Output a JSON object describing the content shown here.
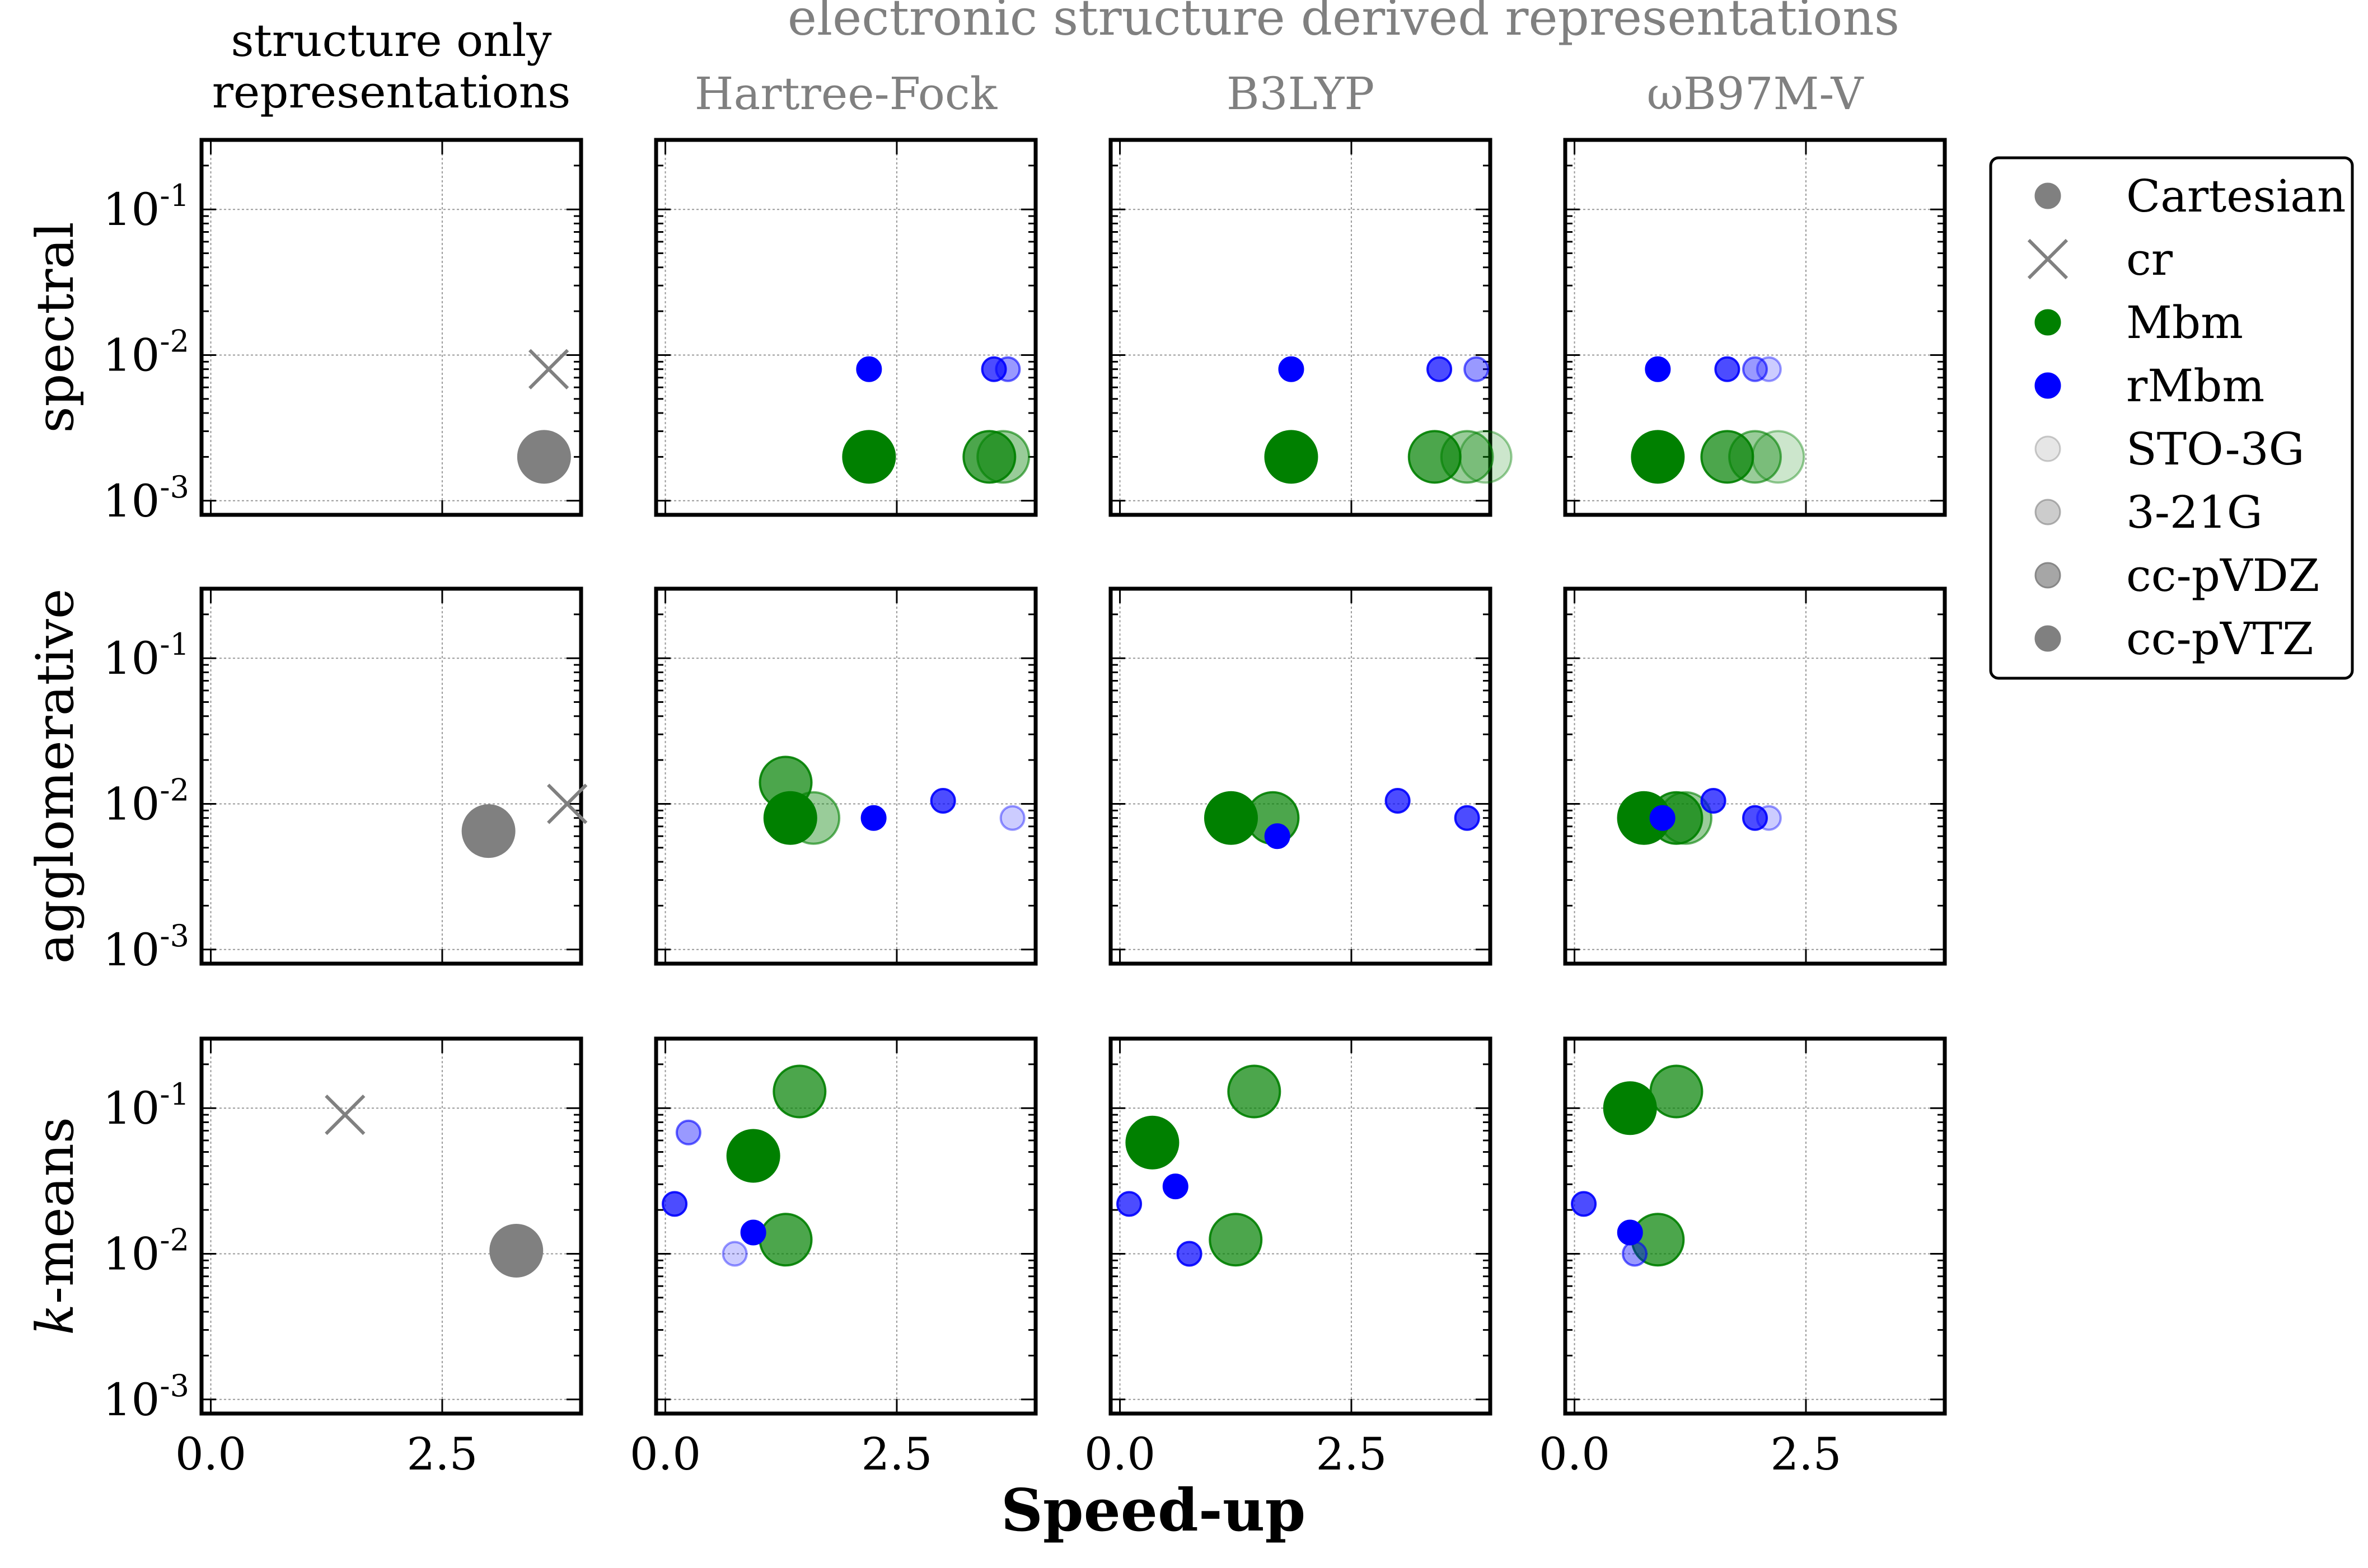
{
  "figure": {
    "super_title": "electronic structure derived representations",
    "column_titles": [
      "structure only\nrepresentations",
      "Hartree-Fock",
      "B3LYP",
      "ωB97M-V"
    ],
    "row_labels": [
      "spectral",
      "agglomerative",
      "k-means"
    ],
    "xlabel": "Speed-up",
    "x_tick_labels": [
      "0.0",
      "2.5"
    ],
    "y_tick_labels": [
      "10-3",
      "10-2",
      "10-1"
    ],
    "colors": {
      "Cartesian": "#808080",
      "cr": "#808080",
      "Mbm": "#008000",
      "rMbm": "#0000ff",
      "frame": "#000000",
      "title_gray": "#808080"
    },
    "legend": {
      "placement": "right",
      "entries": [
        {
          "label": "Cartesian",
          "marker": "circle",
          "color": "#808080",
          "alpha": 1.0
        },
        {
          "label": "cr",
          "marker": "x",
          "color": "#808080",
          "alpha": 1.0
        },
        {
          "label": "Mbm",
          "marker": "circle",
          "color": "#008000",
          "alpha": 1.0
        },
        {
          "label": "rMbm",
          "marker": "circle",
          "color": "#0000ff",
          "alpha": 1.0
        },
        {
          "label": "STO-3G",
          "marker": "circle",
          "color": "#808080",
          "alpha": 0.2
        },
        {
          "label": "3-21G",
          "marker": "circle",
          "color": "#808080",
          "alpha": 0.4
        },
        {
          "label": "cc-pVDZ",
          "marker": "circle",
          "color": "#808080",
          "alpha": 0.7
        },
        {
          "label": "cc-pVTZ",
          "marker": "circle",
          "color": "#808080",
          "alpha": 1.0
        }
      ]
    }
  },
  "chart_data": {
    "type": "scatter",
    "xlabel": "Speed-up",
    "xlim": [
      -0.1,
      4.0
    ],
    "ylim": [
      0.0008,
      0.3
    ],
    "yscale": "log",
    "grid": true,
    "panels": [
      {
        "row": "spectral",
        "col": "structure only",
        "points": [
          {
            "rep": "cr",
            "x": 3.65,
            "y": 0.008
          },
          {
            "rep": "Cartesian",
            "x": 3.6,
            "y": 0.002
          }
        ]
      },
      {
        "row": "spectral",
        "col": "Hartree-Fock",
        "points": [
          {
            "rep": "rMbm",
            "basis": "cc-pVTZ",
            "x": 2.2,
            "y": 0.008
          },
          {
            "rep": "rMbm",
            "basis": "cc-pVDZ",
            "x": 3.55,
            "y": 0.008
          },
          {
            "rep": "rMbm",
            "basis": "3-21G",
            "x": 3.7,
            "y": 0.008
          },
          {
            "rep": "Mbm",
            "basis": "cc-pVTZ",
            "x": 2.2,
            "y": 0.002
          },
          {
            "rep": "Mbm",
            "basis": "cc-pVDZ",
            "x": 3.5,
            "y": 0.002
          },
          {
            "rep": "Mbm",
            "basis": "3-21G",
            "x": 3.65,
            "y": 0.002
          }
        ]
      },
      {
        "row": "spectral",
        "col": "B3LYP",
        "points": [
          {
            "rep": "rMbm",
            "basis": "cc-pVTZ",
            "x": 1.85,
            "y": 0.008
          },
          {
            "rep": "rMbm",
            "basis": "cc-pVDZ",
            "x": 3.45,
            "y": 0.008
          },
          {
            "rep": "rMbm",
            "basis": "3-21G",
            "x": 3.85,
            "y": 0.008
          },
          {
            "rep": "Mbm",
            "basis": "cc-pVTZ",
            "x": 1.85,
            "y": 0.002
          },
          {
            "rep": "Mbm",
            "basis": "cc-pVDZ",
            "x": 3.4,
            "y": 0.002
          },
          {
            "rep": "Mbm",
            "basis": "3-21G",
            "x": 3.75,
            "y": 0.002
          },
          {
            "rep": "Mbm",
            "basis": "STO-3G",
            "x": 3.95,
            "y": 0.002
          }
        ]
      },
      {
        "row": "spectral",
        "col": "ωB97M-V",
        "points": [
          {
            "rep": "rMbm",
            "basis": "cc-pVTZ",
            "x": 0.9,
            "y": 0.008
          },
          {
            "rep": "rMbm",
            "basis": "cc-pVDZ",
            "x": 1.65,
            "y": 0.008
          },
          {
            "rep": "rMbm",
            "basis": "3-21G",
            "x": 1.95,
            "y": 0.008
          },
          {
            "rep": "rMbm",
            "basis": "STO-3G",
            "x": 2.1,
            "y": 0.008
          },
          {
            "rep": "Mbm",
            "basis": "cc-pVTZ",
            "x": 0.9,
            "y": 0.002
          },
          {
            "rep": "Mbm",
            "basis": "cc-pVDZ",
            "x": 1.65,
            "y": 0.002
          },
          {
            "rep": "Mbm",
            "basis": "3-21G",
            "x": 1.95,
            "y": 0.002
          },
          {
            "rep": "Mbm",
            "basis": "STO-3G",
            "x": 2.2,
            "y": 0.002
          }
        ]
      },
      {
        "row": "agglomerative",
        "col": "structure only",
        "points": [
          {
            "rep": "cr",
            "x": 3.85,
            "y": 0.01
          },
          {
            "rep": "Cartesian",
            "x": 3.0,
            "y": 0.0065
          }
        ]
      },
      {
        "row": "agglomerative",
        "col": "Hartree-Fock",
        "points": [
          {
            "rep": "Mbm",
            "basis": "cc-pVDZ",
            "x": 1.3,
            "y": 0.014
          },
          {
            "rep": "Mbm",
            "basis": "3-21G",
            "x": 1.6,
            "y": 0.008
          },
          {
            "rep": "Mbm",
            "basis": "cc-pVTZ",
            "x": 1.35,
            "y": 0.008
          },
          {
            "rep": "rMbm",
            "basis": "cc-pVTZ",
            "x": 2.25,
            "y": 0.008
          },
          {
            "rep": "rMbm",
            "basis": "cc-pVDZ",
            "x": 3.0,
            "y": 0.0105
          },
          {
            "rep": "rMbm",
            "basis": "STO-3G",
            "x": 3.75,
            "y": 0.008
          }
        ]
      },
      {
        "row": "agglomerative",
        "col": "B3LYP",
        "points": [
          {
            "rep": "Mbm",
            "basis": "cc-pVTZ",
            "x": 1.2,
            "y": 0.008
          },
          {
            "rep": "Mbm",
            "basis": "cc-pVDZ",
            "x": 1.65,
            "y": 0.008
          },
          {
            "rep": "rMbm",
            "basis": "cc-pVTZ",
            "x": 1.7,
            "y": 0.006
          },
          {
            "rep": "rMbm",
            "basis": "cc-pVDZ",
            "x": 3.0,
            "y": 0.0105
          },
          {
            "rep": "rMbm",
            "basis": "cc-pVDZ",
            "x": 3.75,
            "y": 0.008
          }
        ]
      },
      {
        "row": "agglomerative",
        "col": "ωB97M-V",
        "points": [
          {
            "rep": "Mbm",
            "basis": "cc-pVTZ",
            "x": 0.75,
            "y": 0.008
          },
          {
            "rep": "Mbm",
            "basis": "cc-pVDZ",
            "x": 1.1,
            "y": 0.008
          },
          {
            "rep": "Mbm",
            "basis": "3-21G",
            "x": 1.2,
            "y": 0.008
          },
          {
            "rep": "rMbm",
            "basis": "cc-pVTZ",
            "x": 0.95,
            "y": 0.008
          },
          {
            "rep": "rMbm",
            "basis": "cc-pVDZ",
            "x": 1.5,
            "y": 0.0105
          },
          {
            "rep": "rMbm",
            "basis": "cc-pVDZ",
            "x": 1.95,
            "y": 0.008
          },
          {
            "rep": "rMbm",
            "basis": "STO-3G",
            "x": 2.1,
            "y": 0.008
          }
        ]
      },
      {
        "row": "k-means",
        "col": "structure only",
        "points": [
          {
            "rep": "cr",
            "x": 1.45,
            "y": 0.09
          },
          {
            "rep": "Cartesian",
            "x": 3.3,
            "y": 0.0105
          }
        ]
      },
      {
        "row": "k-means",
        "col": "Hartree-Fock",
        "points": [
          {
            "rep": "Mbm",
            "basis": "cc-pVDZ",
            "x": 1.45,
            "y": 0.13
          },
          {
            "rep": "Mbm",
            "basis": "cc-pVTZ",
            "x": 0.95,
            "y": 0.047
          },
          {
            "rep": "Mbm",
            "basis": "cc-pVDZ",
            "x": 1.3,
            "y": 0.0125
          },
          {
            "rep": "rMbm",
            "basis": "3-21G",
            "x": 0.25,
            "y": 0.068
          },
          {
            "rep": "rMbm",
            "basis": "cc-pVDZ",
            "x": 0.1,
            "y": 0.022
          },
          {
            "rep": "rMbm",
            "basis": "cc-pVTZ",
            "x": 0.95,
            "y": 0.014
          },
          {
            "rep": "rMbm",
            "basis": "STO-3G",
            "x": 0.75,
            "y": 0.01
          }
        ]
      },
      {
        "row": "k-means",
        "col": "B3LYP",
        "points": [
          {
            "rep": "Mbm",
            "basis": "cc-pVDZ",
            "x": 1.45,
            "y": 0.13
          },
          {
            "rep": "Mbm",
            "basis": "cc-pVTZ",
            "x": 0.35,
            "y": 0.058
          },
          {
            "rep": "Mbm",
            "basis": "cc-pVDZ",
            "x": 1.25,
            "y": 0.0125
          },
          {
            "rep": "rMbm",
            "basis": "cc-pVTZ",
            "x": 0.6,
            "y": 0.029
          },
          {
            "rep": "rMbm",
            "basis": "cc-pVDZ",
            "x": 0.1,
            "y": 0.022
          },
          {
            "rep": "rMbm",
            "basis": "cc-pVDZ",
            "x": 0.75,
            "y": 0.01
          }
        ]
      },
      {
        "row": "k-means",
        "col": "ωB97M-V",
        "points": [
          {
            "rep": "Mbm",
            "basis": "cc-pVDZ",
            "x": 1.1,
            "y": 0.13
          },
          {
            "rep": "Mbm",
            "basis": "cc-pVTZ",
            "x": 0.6,
            "y": 0.1
          },
          {
            "rep": "Mbm",
            "basis": "cc-pVDZ",
            "x": 0.9,
            "y": 0.0125
          },
          {
            "rep": "rMbm",
            "basis": "cc-pVDZ",
            "x": 0.1,
            "y": 0.022
          },
          {
            "rep": "rMbm",
            "basis": "cc-pVTZ",
            "x": 0.6,
            "y": 0.014
          },
          {
            "rep": "rMbm",
            "basis": "3-21G",
            "x": 0.65,
            "y": 0.01
          }
        ]
      }
    ]
  }
}
